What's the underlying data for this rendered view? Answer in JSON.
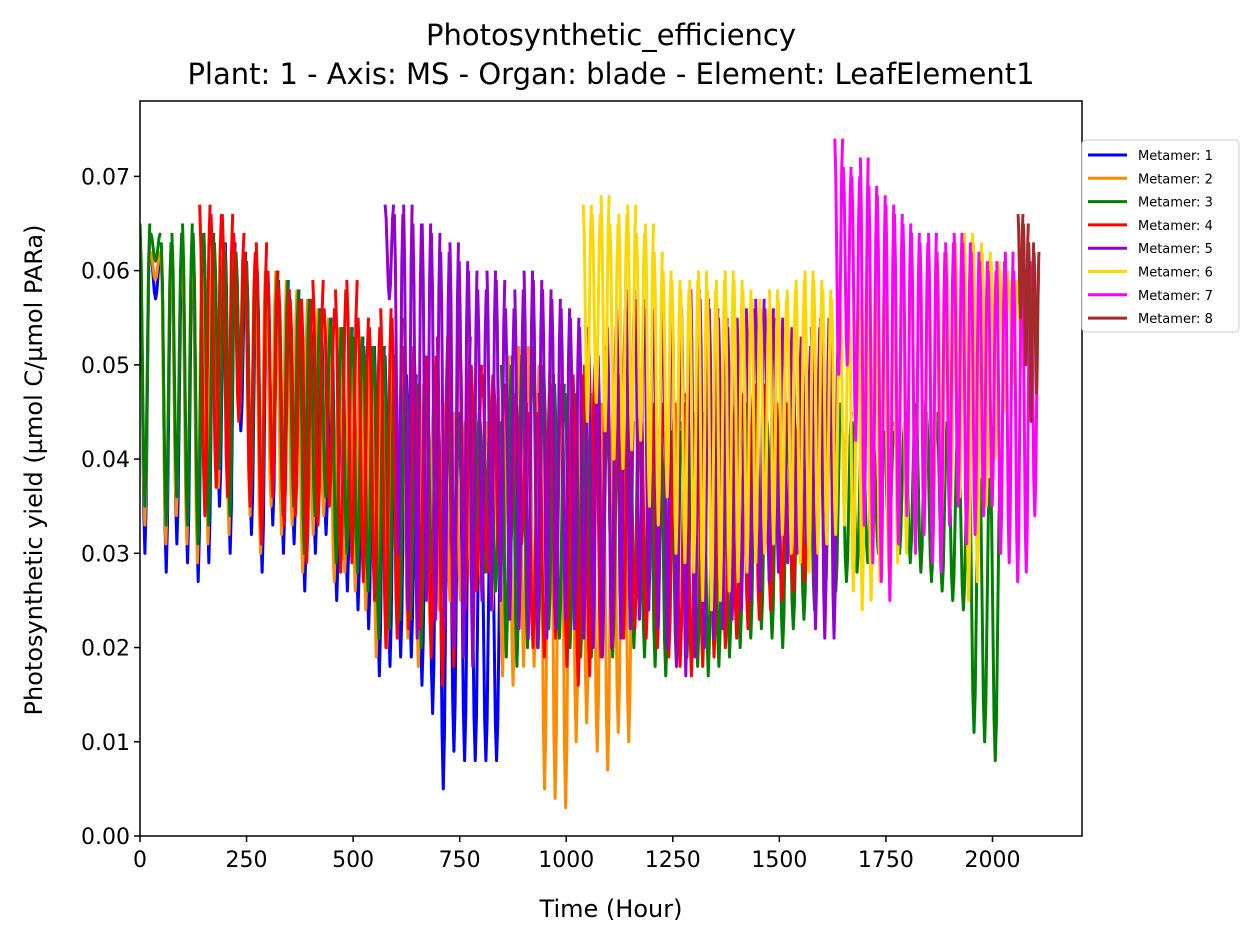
{
  "chart_data": {
    "type": "line",
    "title": "Photosynthetic_efficiency",
    "subtitle": "Plant: 1 - Axis: MS - Organ: blade - Element: LeafElement1",
    "xlabel": "Time (Hour)",
    "ylabel": "Photosynthetic yield (µmol C/µmol PARa)",
    "xlim": [
      0,
      2210
    ],
    "ylim": [
      0,
      0.078
    ],
    "xticks": [
      0,
      250,
      500,
      750,
      1000,
      1250,
      1500,
      1750,
      2000
    ],
    "xtick_labels": [
      "0",
      "250",
      "500",
      "750",
      "1000",
      "1250",
      "1500",
      "1750",
      "2000"
    ],
    "yticks": [
      0,
      0.01,
      0.02,
      0.03,
      0.04,
      0.05,
      0.06,
      0.07
    ],
    "ytick_labels": [
      "0.00",
      "0.01",
      "0.02",
      "0.03",
      "0.04",
      "0.05",
      "0.06",
      "0.07"
    ],
    "grid": false,
    "legend_position": "outside-right-top",
    "series": [
      {
        "name": "Metamer: 1",
        "color": "#0000ff",
        "start": 0,
        "end": 850,
        "peaks": [
          0.064,
          0.062,
          0.062,
          0.061,
          0.063,
          0.063,
          0.064,
          0.062,
          0.063,
          0.062,
          0.061,
          0.06,
          0.06,
          0.059,
          0.058,
          0.057,
          0.056,
          0.055,
          0.054,
          0.054,
          0.053,
          0.052,
          0.052,
          0.051,
          0.05,
          0.049,
          0.048,
          0.047,
          0.046,
          0.045,
          0.044,
          0.04,
          0.038,
          0.036
        ],
        "troughs": [
          0.03,
          0.057,
          0.028,
          0.031,
          0.029,
          0.027,
          0.029,
          0.035,
          0.03,
          0.043,
          0.032,
          0.028,
          0.033,
          0.03,
          0.031,
          0.026,
          0.03,
          0.032,
          0.025,
          0.026,
          0.024,
          0.022,
          0.017,
          0.018,
          0.019,
          0.019,
          0.016,
          0.013,
          0.005,
          0.009,
          0.008,
          0.008,
          0.008,
          0.008
        ]
      },
      {
        "name": "Metamer: 2",
        "color": "#ff8c00",
        "start": 0,
        "end": 1160,
        "peaks": [
          0.064,
          0.062,
          0.062,
          0.061,
          0.063,
          0.063,
          0.064,
          0.062,
          0.063,
          0.062,
          0.061,
          0.06,
          0.06,
          0.059,
          0.058,
          0.057,
          0.056,
          0.055,
          0.054,
          0.054,
          0.053,
          0.052,
          0.052,
          0.051,
          0.05,
          0.049,
          0.048,
          0.047,
          0.046,
          0.045,
          0.044,
          0.045,
          0.044,
          0.044,
          0.05,
          0.051,
          0.052,
          0.05,
          0.049,
          0.051,
          0.05,
          0.048,
          0.047,
          0.046,
          0.045,
          0.044,
          0.044
        ],
        "troughs": [
          0.033,
          0.059,
          0.031,
          0.034,
          0.031,
          0.029,
          0.031,
          0.037,
          0.032,
          0.045,
          0.034,
          0.03,
          0.035,
          0.032,
          0.033,
          0.028,
          0.032,
          0.034,
          0.027,
          0.028,
          0.026,
          0.024,
          0.019,
          0.02,
          0.021,
          0.021,
          0.018,
          0.026,
          0.024,
          0.025,
          0.025,
          0.027,
          0.026,
          0.024,
          0.017,
          0.016,
          0.018,
          0.018,
          0.005,
          0.004,
          0.003,
          0.01,
          0.012,
          0.009,
          0.007,
          0.011,
          0.01
        ]
      },
      {
        "name": "Metamer: 3",
        "color": "#008000",
        "start": 0,
        "end": 2020,
        "peaks": [
          0.065,
          0.064,
          0.063,
          0.064,
          0.065,
          0.064,
          0.064,
          0.063,
          0.062,
          0.062,
          0.061,
          0.06,
          0.06,
          0.059,
          0.058,
          0.057,
          0.056,
          0.055,
          0.054,
          0.054,
          0.053,
          0.052,
          0.052,
          0.051,
          0.05,
          0.049,
          0.048,
          0.047,
          0.046,
          0.045,
          0.044,
          0.045,
          0.044,
          0.044,
          0.05,
          0.051,
          0.052,
          0.05,
          0.049,
          0.048,
          0.047,
          0.046,
          0.045,
          0.044,
          0.043,
          0.045,
          0.046,
          0.045,
          0.044,
          0.043,
          0.043,
          0.044,
          0.045,
          0.044,
          0.043,
          0.044,
          0.045,
          0.046,
          0.045,
          0.044,
          0.043,
          0.042,
          0.043,
          0.044,
          0.045,
          0.046,
          0.045,
          0.044,
          0.043,
          0.042,
          0.043,
          0.044,
          0.045,
          0.046,
          0.045,
          0.044,
          0.043,
          0.042,
          0.04,
          0.038,
          0.038
        ],
        "troughs": [
          0.035,
          0.061,
          0.033,
          0.036,
          0.033,
          0.031,
          0.033,
          0.039,
          0.034,
          0.047,
          0.036,
          0.032,
          0.037,
          0.034,
          0.035,
          0.03,
          0.034,
          0.036,
          0.029,
          0.03,
          0.028,
          0.026,
          0.021,
          0.022,
          0.023,
          0.023,
          0.02,
          0.028,
          0.026,
          0.027,
          0.027,
          0.029,
          0.028,
          0.026,
          0.019,
          0.018,
          0.02,
          0.02,
          0.022,
          0.021,
          0.02,
          0.019,
          0.019,
          0.02,
          0.019,
          0.021,
          0.02,
          0.019,
          0.018,
          0.017,
          0.018,
          0.019,
          0.018,
          0.017,
          0.018,
          0.019,
          0.02,
          0.021,
          0.022,
          0.021,
          0.02,
          0.022,
          0.023,
          0.024,
          0.025,
          0.026,
          0.027,
          0.028,
          0.029,
          0.03,
          0.031,
          0.03,
          0.029,
          0.028,
          0.027,
          0.026,
          0.025,
          0.024,
          0.011,
          0.01,
          0.008
        ]
      },
      {
        "name": "Metamer: 4",
        "color": "#ff0000",
        "start": 140,
        "end": 1600,
        "peaks": [
          0.067,
          0.066,
          0.066,
          0.064,
          0.062,
          0.063,
          0.06,
          0.058,
          0.057,
          0.057,
          0.059,
          0.056,
          0.058,
          0.059,
          0.055,
          0.054,
          0.056,
          0.055,
          0.052,
          0.05,
          0.051,
          0.053,
          0.055,
          0.053,
          0.05,
          0.049,
          0.048,
          0.047,
          0.046,
          0.045,
          0.047,
          0.048,
          0.047,
          0.049,
          0.05,
          0.052,
          0.05,
          0.049,
          0.048,
          0.047,
          0.046,
          0.045,
          0.046,
          0.047,
          0.046,
          0.045,
          0.044,
          0.046,
          0.047,
          0.048,
          0.047,
          0.046,
          0.045,
          0.046,
          0.047
        ],
        "troughs": [
          0.034,
          0.037,
          0.036,
          0.044,
          0.035,
          0.031,
          0.036,
          0.033,
          0.034,
          0.029,
          0.033,
          0.035,
          0.028,
          0.029,
          0.027,
          0.025,
          0.02,
          0.021,
          0.022,
          0.022,
          0.019,
          0.016,
          0.018,
          0.024,
          0.026,
          0.028,
          0.029,
          0.03,
          0.031,
          0.02,
          0.019,
          0.021,
          0.018,
          0.016,
          0.017,
          0.019,
          0.02,
          0.021,
          0.022,
          0.021,
          0.02,
          0.019,
          0.018,
          0.017,
          0.018,
          0.019,
          0.02,
          0.021,
          0.022,
          0.023,
          0.024,
          0.025,
          0.026,
          0.027,
          0.028
        ]
      },
      {
        "name": "Metamer: 5",
        "color": "#9400d3",
        "start": 575,
        "end": 1640,
        "peaks": [
          0.067,
          0.066,
          0.067,
          0.065,
          0.065,
          0.064,
          0.062,
          0.063,
          0.061,
          0.06,
          0.058,
          0.06,
          0.059,
          0.056,
          0.058,
          0.06,
          0.059,
          0.058,
          0.057,
          0.056,
          0.055,
          0.054,
          0.052,
          0.051,
          0.054,
          0.056,
          0.058,
          0.057,
          0.056,
          0.055,
          0.056,
          0.057,
          0.056,
          0.058,
          0.057,
          0.056,
          0.055,
          0.054,
          0.055,
          0.056,
          0.057,
          0.056,
          0.055,
          0.054,
          0.053,
          0.052,
          0.054,
          0.055,
          0.054
        ],
        "troughs": [
          0.057,
          0.03,
          0.024,
          0.021,
          0.025,
          0.023,
          0.022,
          0.02,
          0.019,
          0.018,
          0.025,
          0.024,
          0.025,
          0.023,
          0.022,
          0.021,
          0.02,
          0.021,
          0.022,
          0.023,
          0.022,
          0.021,
          0.02,
          0.019,
          0.02,
          0.021,
          0.022,
          0.023,
          0.024,
          0.022,
          0.02,
          0.018,
          0.017,
          0.019,
          0.02,
          0.021,
          0.022,
          0.023,
          0.024,
          0.025,
          0.026,
          0.027,
          0.028,
          0.029,
          0.03,
          0.031,
          0.022,
          0.021,
          0.021
        ]
      },
      {
        "name": "Metamer: 6",
        "color": "#ffd700",
        "start": 1040,
        "end": 2080,
        "peaks": [
          0.067,
          0.066,
          0.068,
          0.065,
          0.066,
          0.067,
          0.064,
          0.065,
          0.062,
          0.06,
          0.059,
          0.058,
          0.059,
          0.06,
          0.058,
          0.059,
          0.06,
          0.059,
          0.058,
          0.057,
          0.056,
          0.058,
          0.057,
          0.058,
          0.059,
          0.06,
          0.059,
          0.058,
          0.057,
          0.056,
          0.055,
          0.06,
          0.059,
          0.058,
          0.057,
          0.06,
          0.061,
          0.062,
          0.061,
          0.06,
          0.061,
          0.062,
          0.063,
          0.064,
          0.063,
          0.062,
          0.061,
          0.06,
          0.059,
          0.058
        ],
        "troughs": [
          0.044,
          0.046,
          0.043,
          0.04,
          0.039,
          0.041,
          0.042,
          0.035,
          0.033,
          0.036,
          0.03,
          0.029,
          0.028,
          0.025,
          0.024,
          0.025,
          0.026,
          0.027,
          0.028,
          0.029,
          0.03,
          0.031,
          0.032,
          0.03,
          0.029,
          0.028,
          0.03,
          0.031,
          0.032,
          0.033,
          0.026,
          0.024,
          0.025,
          0.027,
          0.028,
          0.029,
          0.03,
          0.031,
          0.032,
          0.033,
          0.034,
          0.035,
          0.036,
          0.025,
          0.027,
          0.035,
          0.04,
          0.045,
          0.048,
          0.05
        ]
      },
      {
        "name": "Metamer: 7",
        "color": "#ff00ff",
        "start": 1630,
        "end": 2110,
        "peaks": [
          0.074,
          0.071,
          0.07,
          0.072,
          0.069,
          0.068,
          0.067,
          0.066,
          0.065,
          0.064,
          0.063,
          0.064,
          0.062,
          0.063,
          0.064,
          0.063,
          0.062,
          0.061,
          0.06,
          0.061,
          0.062,
          0.06,
          0.061,
          0.06
        ],
        "troughs": [
          0.049,
          0.05,
          0.042,
          0.033,
          0.029,
          0.027,
          0.025,
          0.031,
          0.034,
          0.03,
          0.032,
          0.029,
          0.028,
          0.033,
          0.035,
          0.031,
          0.032,
          0.034,
          0.035,
          0.03,
          0.029,
          0.027,
          0.028,
          0.034
        ]
      },
      {
        "name": "Metamer: 8",
        "color": "#a52a2a",
        "start": 2060,
        "end": 2110,
        "peaks": [
          0.066,
          0.065,
          0.063,
          0.062
        ],
        "troughs": [
          0.055,
          0.05,
          0.044,
          0.047
        ]
      }
    ]
  }
}
